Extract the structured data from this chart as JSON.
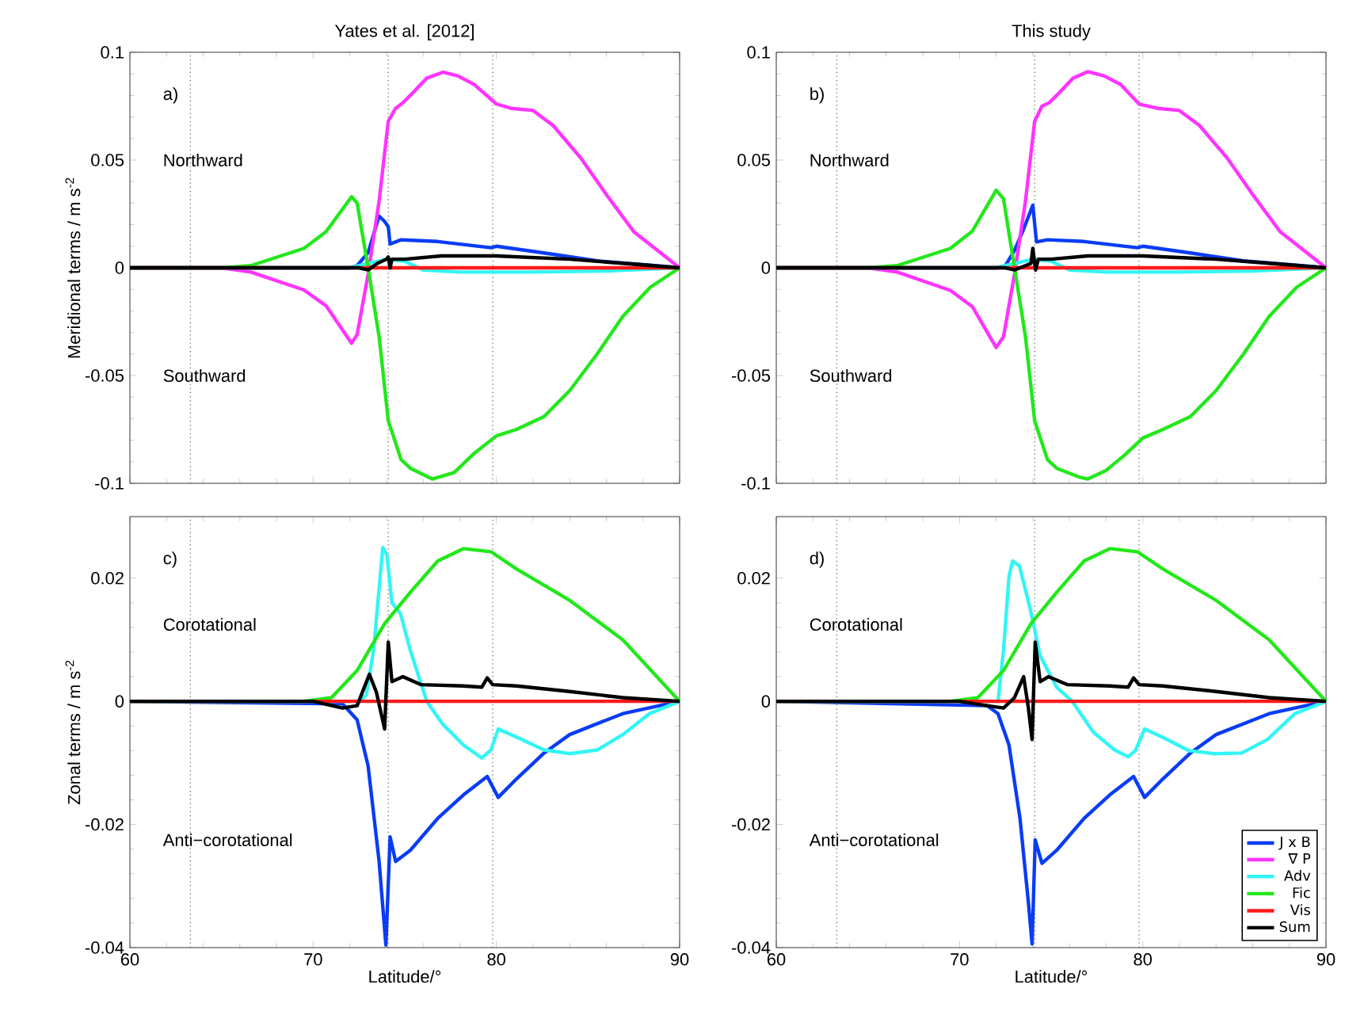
{
  "chart_data": [
    {
      "type": "line",
      "title": "Yates et al. [2012]",
      "ylabel": "Meridional terms / m s$^{-2}$",
      "xlim": [
        60,
        90
      ],
      "ylim": [
        -0.1,
        0.1
      ],
      "xticks": [
        60,
        70,
        80,
        90
      ],
      "yticks": [
        -0.1,
        -0.05,
        0,
        0.05,
        0.1
      ],
      "tick_labels": "y",
      "annotations": [
        "a)",
        "Northward",
        "Southward"
      ],
      "ref_lines": [
        {
          "axis": "x",
          "value": 63.3,
          "color": "#555555",
          "line_style": "dotted"
        },
        {
          "axis": "x",
          "value": 74.1,
          "color": "#555555",
          "line_style": "dotted"
        },
        {
          "axis": "x",
          "value": 79.8,
          "color": "#555555",
          "line_style": "dotted"
        }
      ],
      "series": [
        {
          "color": "#0a3cf5",
          "x": [
            60,
            72,
            72.4,
            73.0,
            73.6,
            73.9,
            74.1,
            74.2,
            74.8,
            76.8,
            79.7,
            80.0,
            82.6,
            85.5,
            88.4,
            90
          ],
          "values": [
            0,
            0,
            0.001,
            0.007,
            0.024,
            0.0215,
            0.019,
            0.011,
            0.013,
            0.0122,
            0.0093,
            0.01,
            0.0069,
            0.0032,
            0.0012,
            0
          ]
        },
        {
          "color": "#ff33ff",
          "x": [
            60,
            65,
            66.6,
            69.5,
            70.7,
            72.1,
            72.4,
            73.0,
            73.6,
            74.1,
            74.5,
            74.9,
            75.3,
            76.2,
            77.1,
            77.9,
            78.8,
            80.0,
            80.8,
            82.0,
            83.1,
            84.6,
            86.0,
            87.5,
            90
          ],
          "values": [
            0,
            0,
            -0.002,
            -0.0103,
            -0.0176,
            -0.035,
            -0.031,
            -0.003,
            0.031,
            0.068,
            0.074,
            0.0766,
            0.08,
            0.088,
            0.0908,
            0.089,
            0.085,
            0.076,
            0.074,
            0.073,
            0.066,
            0.051,
            0.034,
            0.0167,
            0
          ]
        },
        {
          "color": "#33f5f5",
          "x": [
            60,
            72,
            73,
            74,
            75,
            76,
            78,
            82,
            86,
            90
          ],
          "values": [
            0,
            0,
            0.002,
            0.004,
            0.003,
            -0.001,
            -0.002,
            -0.002,
            -0.0015,
            0
          ]
        },
        {
          "color": "#22e81a",
          "x": [
            60,
            65,
            66.6,
            69.5,
            70.7,
            72.1,
            72.4,
            73.0,
            73.6,
            74.1,
            74.8,
            75.3,
            76.5,
            77.7,
            78.8,
            80.0,
            81.1,
            82.6,
            84.0,
            85.5,
            86.9,
            88.4,
            90
          ],
          "values": [
            0,
            0,
            0.001,
            0.009,
            0.0167,
            0.033,
            0.03,
            0,
            -0.032,
            -0.071,
            -0.089,
            -0.093,
            -0.098,
            -0.095,
            -0.086,
            -0.078,
            -0.075,
            -0.069,
            -0.057,
            -0.04,
            -0.0225,
            -0.009,
            0
          ]
        },
        {
          "color": "#ff1a1a",
          "x": [
            60,
            90
          ],
          "values": [
            0,
            0
          ]
        },
        {
          "color": "#000000",
          "x": [
            60,
            72.5,
            73.0,
            73.5,
            74.0,
            74.1,
            74.2,
            74.3,
            75,
            77,
            80,
            84,
            87,
            90
          ],
          "values": [
            0,
            0,
            -0.001,
            0.002,
            0.004,
            0.005,
            0,
            0.004,
            0.004,
            0.0055,
            0.0055,
            0.004,
            0.002,
            0
          ]
        }
      ]
    },
    {
      "type": "line",
      "title": "This study",
      "xlim": [
        60,
        90
      ],
      "ylim": [
        -0.1,
        0.1
      ],
      "xticks": [
        60,
        70,
        80,
        90
      ],
      "yticks": [
        -0.1,
        -0.05,
        0,
        0.05,
        0.1
      ],
      "tick_labels": "y",
      "annotations": [
        "b)",
        "Northward",
        "Southward"
      ],
      "ref_lines": [
        {
          "axis": "x",
          "value": 63.3,
          "color": "#555555",
          "line_style": "dotted"
        },
        {
          "axis": "x",
          "value": 74.1,
          "color": "#555555",
          "line_style": "dotted"
        },
        {
          "axis": "x",
          "value": 79.8,
          "color": "#555555",
          "line_style": "dotted"
        }
      ],
      "series": [
        {
          "color": "#0a3cf5",
          "x": [
            60,
            72,
            72.5,
            73.0,
            73.5,
            74.0,
            74.2,
            74.8,
            76.8,
            79.7,
            80.0,
            82.6,
            85.5,
            88.4,
            90
          ],
          "values": [
            0,
            0,
            0.001,
            0.008,
            0.018,
            0.029,
            0.012,
            0.013,
            0.0122,
            0.0093,
            0.01,
            0.0069,
            0.0032,
            0.0012,
            0
          ]
        },
        {
          "color": "#ff33ff",
          "x": [
            60,
            65,
            66.6,
            69.5,
            70.7,
            72.0,
            72.4,
            73.0,
            73.6,
            74.1,
            74.5,
            74.9,
            75.3,
            76.2,
            77.0,
            77.9,
            78.8,
            79.8,
            80.8,
            82.0,
            83.1,
            84.6,
            86.0,
            87.5,
            90
          ],
          "values": [
            0,
            0,
            -0.002,
            -0.0105,
            -0.018,
            -0.037,
            -0.032,
            -0.003,
            0.031,
            0.068,
            0.075,
            0.0766,
            0.08,
            0.088,
            0.091,
            0.089,
            0.085,
            0.076,
            0.074,
            0.073,
            0.066,
            0.051,
            0.034,
            0.0167,
            0
          ]
        },
        {
          "color": "#33f5f5",
          "x": [
            60,
            72,
            73,
            74,
            75,
            76,
            78,
            82,
            86,
            90
          ],
          "values": [
            0,
            0,
            0.002,
            0.004,
            0.003,
            -0.001,
            -0.002,
            -0.002,
            -0.0015,
            0
          ]
        },
        {
          "color": "#22e81a",
          "x": [
            60,
            65,
            66.6,
            69.5,
            70.7,
            72.0,
            72.4,
            73.0,
            73.6,
            74.1,
            74.8,
            75.3,
            76.5,
            77.0,
            78.0,
            79.0,
            80.0,
            81.1,
            82.6,
            84.0,
            85.5,
            86.9,
            88.4,
            90
          ],
          "values": [
            0,
            0,
            0.001,
            0.009,
            0.017,
            0.036,
            0.032,
            0,
            -0.032,
            -0.071,
            -0.089,
            -0.093,
            -0.097,
            -0.098,
            -0.094,
            -0.087,
            -0.079,
            -0.075,
            -0.069,
            -0.057,
            -0.04,
            -0.0225,
            -0.009,
            0
          ]
        },
        {
          "color": "#ff1a1a",
          "x": [
            60,
            90
          ],
          "values": [
            0,
            0
          ]
        },
        {
          "color": "#000000",
          "x": [
            60,
            72.5,
            73.0,
            73.6,
            73.9,
            74.0,
            74.15,
            74.3,
            75,
            77,
            80,
            84,
            87,
            90
          ],
          "values": [
            0,
            0,
            -0.001,
            0.001,
            0.002,
            0.009,
            -0.001,
            0.004,
            0.004,
            0.0055,
            0.0055,
            0.004,
            0.002,
            0
          ]
        }
      ]
    },
    {
      "type": "line",
      "ylabel": "Zonal terms / m s$^{-2}$",
      "xlabel": "Latitude/°",
      "xlim": [
        60,
        90
      ],
      "ylim": [
        -0.04,
        0.03
      ],
      "xticks": [
        60,
        70,
        80,
        90
      ],
      "yticks": [
        -0.04,
        -0.02,
        0,
        0.02
      ],
      "annotations": [
        "c)",
        "Corotational",
        "Anti−corotational"
      ],
      "ref_lines": [
        {
          "axis": "x",
          "value": 63.3,
          "color": "#555555",
          "line_style": "dotted"
        },
        {
          "axis": "x",
          "value": 74.1,
          "color": "#555555",
          "line_style": "dotted"
        },
        {
          "axis": "x",
          "value": 79.8,
          "color": "#555555",
          "line_style": "dotted"
        }
      ],
      "series": [
        {
          "color": "#0a3cf5",
          "x": [
            60,
            71.6,
            72.4,
            73.0,
            73.6,
            73.97,
            74.2,
            74.5,
            75.3,
            76.8,
            78.2,
            79.5,
            80.1,
            81.1,
            82.6,
            84.0,
            86.9,
            90
          ],
          "values": [
            0,
            -0.0004,
            -0.003,
            -0.0105,
            -0.026,
            -0.0396,
            -0.022,
            -0.026,
            -0.0242,
            -0.019,
            -0.0152,
            -0.0122,
            -0.0156,
            -0.0126,
            -0.0084,
            -0.0054,
            -0.002,
            0
          ]
        },
        {
          "color": "#33f5f5",
          "x": [
            60,
            72.5,
            72.9,
            73.3,
            73.8,
            74.03,
            74.3,
            74.76,
            75.3,
            76.2,
            77.07,
            78.2,
            79.2,
            79.7,
            80.1,
            81.1,
            82.6,
            84.0,
            85.5,
            86.9,
            88.35,
            90
          ],
          "values": [
            0,
            0,
            0.001,
            0.0083,
            0.025,
            0.0237,
            0.016,
            0.0143,
            0.0083,
            0,
            -0.0037,
            -0.0071,
            -0.0092,
            -0.0079,
            -0.0045,
            -0.0058,
            -0.0079,
            -0.0085,
            -0.0079,
            -0.0054,
            -0.002,
            0
          ]
        },
        {
          "color": "#22e81a",
          "x": [
            60,
            69.5,
            71.0,
            72.4,
            73.9,
            75.3,
            76.8,
            78.2,
            79.7,
            81.1,
            84.0,
            86.9,
            90
          ],
          "values": [
            0,
            0,
            0.0006,
            0.005,
            0.0126,
            0.0177,
            0.0228,
            0.0248,
            0.0243,
            0.0215,
            0.0164,
            0.01,
            0
          ]
        },
        {
          "color": "#ff1a1a",
          "x": [
            60,
            90
          ],
          "values": [
            0,
            0
          ]
        },
        {
          "color": "#000000",
          "x": [
            60,
            70,
            71.6,
            72.4,
            73.07,
            73.45,
            73.9,
            74.1,
            74.3,
            74.9,
            75.9,
            78.2,
            79.2,
            79.5,
            79.8,
            81.1,
            84.0,
            86.9,
            90
          ],
          "values": [
            0,
            0,
            -0.0011,
            -0.0007,
            0.0044,
            0.0015,
            -0.0045,
            0.0096,
            0.0032,
            0.004,
            0.0027,
            0.0025,
            0.0023,
            0.0038,
            0.0027,
            0.0025,
            0.0016,
            0.0006,
            0
          ]
        }
      ]
    },
    {
      "type": "line",
      "xlabel": "Latitude/°",
      "xlim": [
        60,
        90
      ],
      "ylim": [
        -0.04,
        0.03
      ],
      "xticks": [
        60,
        70,
        80,
        90
      ],
      "yticks": [
        -0.04,
        -0.02,
        0,
        0.02
      ],
      "legend": "bottom right",
      "annotations": [
        "d)",
        "Corotational",
        "Anti−corotational"
      ],
      "ref_lines": [
        {
          "axis": "x",
          "value": 63.3,
          "color": "#555555",
          "line_style": "dotted"
        },
        {
          "axis": "x",
          "value": 74.1,
          "color": "#555555",
          "line_style": "dotted"
        },
        {
          "axis": "x",
          "value": 79.8,
          "color": "#555555",
          "line_style": "dotted"
        }
      ],
      "series": [
        {
          "name": "J x B",
          "color": "#0a3cf5",
          "x": [
            60,
            71.5,
            72.1,
            72.7,
            73.3,
            73.76,
            73.96,
            74.13,
            74.5,
            75.3,
            76.8,
            78.2,
            79.5,
            80.1,
            81.1,
            82.6,
            84.0,
            86.9,
            90
          ],
          "values": [
            0,
            -0.0007,
            -0.002,
            -0.0071,
            -0.019,
            -0.0327,
            -0.0394,
            -0.0225,
            -0.0263,
            -0.0242,
            -0.019,
            -0.0152,
            -0.0122,
            -0.0156,
            -0.0126,
            -0.0084,
            -0.0054,
            -0.002,
            0
          ]
        },
        {
          "name": "∇ P",
          "color": "#ff33ff",
          "values": [
            null,
            null
          ]
        },
        {
          "name": "Adv",
          "color": "#33f5f5",
          "x": [
            60,
            72.1,
            72.4,
            72.7,
            72.9,
            73.27,
            73.85,
            74.4,
            75.3,
            76.15,
            77.3,
            78.46,
            79.2,
            79.6,
            80.1,
            81.06,
            82.5,
            83.9,
            85.4,
            86.8,
            88.3,
            90
          ],
          "values": [
            0,
            0,
            0.0083,
            0.0203,
            0.0228,
            0.022,
            0.0151,
            0.0074,
            0.0023,
            0,
            -0.005,
            -0.0079,
            -0.009,
            -0.008,
            -0.0045,
            -0.0058,
            -0.008,
            -0.0085,
            -0.0084,
            -0.0062,
            -0.002,
            0
          ]
        },
        {
          "name": "Fic",
          "color": "#22e81a",
          "x": [
            60,
            69.5,
            71.0,
            72.4,
            73.9,
            75.3,
            76.8,
            78.2,
            79.7,
            81.1,
            84.0,
            86.9,
            90
          ],
          "values": [
            0,
            0,
            0.0006,
            0.005,
            0.0126,
            0.0177,
            0.0228,
            0.0248,
            0.0243,
            0.0215,
            0.0164,
            0.01,
            0
          ]
        },
        {
          "name": "Vis",
          "color": "#ff1a1a",
          "x": [
            60,
            90
          ],
          "values": [
            0,
            0
          ]
        },
        {
          "name": "Sum",
          "color": "#000000",
          "x": [
            60,
            70,
            71.5,
            72.4,
            73.0,
            73.5,
            73.76,
            73.96,
            74.13,
            74.4,
            74.85,
            75.9,
            78.2,
            79.2,
            79.5,
            79.8,
            81.1,
            84.0,
            86.9,
            90
          ],
          "values": [
            0,
            0,
            -0.0007,
            -0.0011,
            0.0006,
            0.004,
            -0.0011,
            -0.0062,
            0.0096,
            0.0032,
            0.004,
            0.0027,
            0.0025,
            0.0023,
            0.0038,
            0.0027,
            0.0025,
            0.0016,
            0.0006,
            0
          ]
        }
      ]
    }
  ]
}
